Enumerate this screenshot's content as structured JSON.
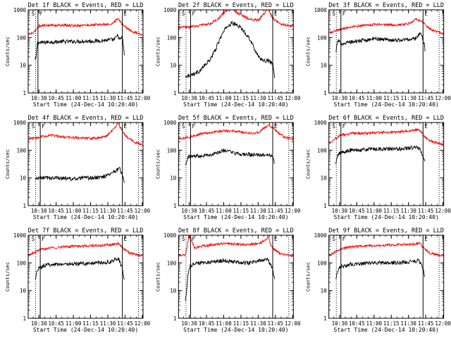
{
  "figure": {
    "x_tick_labels": [
      "10:30",
      "10:45",
      "11:00",
      "11:15",
      "11:30",
      "11:45",
      "12:00"
    ],
    "y_tick_labels": [
      "1",
      "10",
      "100",
      "1000"
    ],
    "ylabel": "Counts/sec",
    "xlabel": "Start Time (24-Dec-14 10:20:40)",
    "colors": {
      "events": "#000000",
      "lld": "#ff0000",
      "axes": "#000000"
    }
  },
  "chart_data": [
    {
      "type": "line",
      "title": "Det 1f BLACK = Events, RED = LLD",
      "xlabel": "Start Time (24-Dec-14 10:20:40)",
      "ylabel": "Counts/sec",
      "x_unit": "minutes since 10:20:40",
      "xlim": [
        0,
        100
      ],
      "ylim": [
        1,
        1000
      ],
      "yscale": "log",
      "markers": {
        "S": 6.5,
        "F": 8.5,
        "E": 82,
        "dotted": [
          96
        ]
      },
      "series": [
        {
          "name": "Events",
          "color": "#000000",
          "x": [
            6,
            7,
            8,
            10,
            20,
            40,
            60,
            75,
            78,
            80,
            82,
            83,
            84
          ],
          "y": [
            15,
            20,
            70,
            65,
            70,
            72,
            75,
            85,
            120,
            80,
            110,
            40,
            20
          ]
        },
        {
          "name": "LLD",
          "color": "#ff0000",
          "x": [
            0,
            5,
            8,
            10,
            20,
            40,
            60,
            72,
            76,
            78,
            80,
            82,
            86,
            90,
            96,
            100
          ],
          "y": [
            130,
            150,
            230,
            270,
            280,
            270,
            290,
            300,
            400,
            500,
            380,
            300,
            220,
            170,
            140,
            130
          ]
        }
      ]
    },
    {
      "type": "line",
      "title": "Det 2f BLACK = Events, RED = LLD",
      "xlabel": "Start Time (24-Dec-14 10:20:40)",
      "ylabel": "Counts/sec",
      "x_unit": "minutes since 10:20:40",
      "xlim": [
        0,
        100
      ],
      "ylim": [
        1,
        1000
      ],
      "yscale": "log",
      "markers": {
        "S": 6.5,
        "F": 10.5,
        "E": 82,
        "dotted": [
          96
        ]
      },
      "series": [
        {
          "name": "Events",
          "color": "#000000",
          "x": [
            6,
            10,
            14,
            18,
            22,
            27,
            32,
            37,
            42,
            47,
            52,
            57,
            62,
            66,
            70,
            74,
            78,
            82,
            84
          ],
          "y": [
            4,
            4.5,
            5,
            6,
            9,
            15,
            35,
            110,
            250,
            330,
            270,
            170,
            90,
            40,
            20,
            14,
            15,
            11,
            3
          ]
        },
        {
          "name": "LLD",
          "color": "#ff0000",
          "x": [
            0,
            10,
            20,
            28,
            34,
            38,
            42,
            46,
            50,
            55,
            60,
            65,
            70,
            74,
            78,
            82,
            90,
            100
          ],
          "y": [
            230,
            240,
            280,
            320,
            450,
            650,
            950,
            1200,
            850,
            650,
            500,
            430,
            430,
            700,
            1100,
            500,
            300,
            250
          ]
        }
      ]
    },
    {
      "type": "line",
      "title": "Det 3f BLACK = Events, RED = LLD",
      "xlabel": "Start Time (24-Dec-14 10:20:40)",
      "ylabel": "Counts/sec",
      "x_unit": "minutes since 10:20:40",
      "xlim": [
        0,
        100
      ],
      "ylim": [
        1,
        1000
      ],
      "yscale": "log",
      "markers": {
        "S": 6.5,
        "F": 10.5,
        "E": 82,
        "dotted": [
          96
        ]
      },
      "series": [
        {
          "name": "Events",
          "color": "#000000",
          "x": [
            6,
            8,
            10,
            20,
            40,
            60,
            75,
            80,
            83,
            84
          ],
          "y": [
            30,
            80,
            60,
            70,
            90,
            80,
            90,
            150,
            60,
            25
          ]
        },
        {
          "name": "LLD",
          "color": "#ff0000",
          "x": [
            0,
            10,
            20,
            40,
            60,
            70,
            76,
            80,
            82,
            88,
            100
          ],
          "y": [
            150,
            200,
            250,
            300,
            280,
            320,
            450,
            400,
            350,
            200,
            140
          ]
        }
      ]
    },
    {
      "type": "line",
      "title": "Det 4f BLACK = Events, RED = LLD",
      "xlabel": "Start Time (24-Dec-14 10:20:40)",
      "ylabel": "Counts/sec",
      "x_unit": "minutes since 10:20:40",
      "xlim": [
        0,
        100
      ],
      "ylim": [
        1,
        1000
      ],
      "yscale": "log",
      "markers": {
        "S": 6.5,
        "F": 10.5,
        "E": 82,
        "dotted": [
          96
        ]
      },
      "series": [
        {
          "name": "Events",
          "color": "#000000",
          "x": [
            6,
            10,
            20,
            30,
            40,
            50,
            60,
            68,
            72,
            76,
            80,
            82,
            84
          ],
          "y": [
            9,
            10,
            10,
            10,
            9,
            10,
            10,
            12,
            15,
            18,
            22,
            12,
            6
          ]
        },
        {
          "name": "LLD",
          "color": "#ff0000",
          "x": [
            0,
            10,
            20,
            30,
            45,
            60,
            68,
            72,
            76,
            78,
            80,
            82,
            86,
            92,
            100
          ],
          "y": [
            250,
            300,
            350,
            300,
            280,
            270,
            320,
            450,
            700,
            1000,
            700,
            500,
            300,
            200,
            150
          ]
        }
      ]
    },
    {
      "type": "line",
      "title": "Det 5f BLACK = Events, RED = LLD",
      "xlabel": "Start Time (24-Dec-14 10:20:40)",
      "ylabel": "Counts/sec",
      "x_unit": "minutes since 10:20:40",
      "xlim": [
        0,
        100
      ],
      "ylim": [
        1,
        1000
      ],
      "yscale": "log",
      "markers": {
        "S": 6.5,
        "F": 10.5,
        "E": 82,
        "dotted": [
          96
        ]
      },
      "series": [
        {
          "name": "Events",
          "color": "#000000",
          "x": [
            6,
            8,
            10,
            20,
            30,
            40,
            50,
            60,
            70,
            78,
            82,
            84
          ],
          "y": [
            30,
            55,
            60,
            65,
            70,
            100,
            75,
            70,
            65,
            70,
            60,
            30
          ]
        },
        {
          "name": "LLD",
          "color": "#ff0000",
          "x": [
            0,
            10,
            20,
            30,
            40,
            50,
            60,
            66,
            70,
            74,
            78,
            82,
            86,
            92,
            100
          ],
          "y": [
            250,
            300,
            400,
            450,
            500,
            480,
            420,
            400,
            450,
            600,
            800,
            650,
            450,
            300,
            250
          ]
        }
      ]
    },
    {
      "type": "line",
      "title": "Det 6f BLACK = Events, RED = LLD",
      "xlabel": "Start Time (24-Dec-14 10:20:40)",
      "ylabel": "Counts/sec",
      "x_unit": "minutes since 10:20:40",
      "xlim": [
        0,
        100
      ],
      "ylim": [
        1,
        1000
      ],
      "yscale": "log",
      "markers": {
        "S": 6.5,
        "F": 10.5,
        "E": 82,
        "dotted": [
          96
        ]
      },
      "series": [
        {
          "name": "Events",
          "color": "#000000",
          "x": [
            6,
            8,
            10,
            20,
            40,
            60,
            70,
            76,
            80,
            82,
            84
          ],
          "y": [
            30,
            70,
            80,
            100,
            110,
            110,
            120,
            130,
            100,
            60,
            35
          ]
        },
        {
          "name": "LLD",
          "color": "#ff0000",
          "x": [
            0,
            10,
            20,
            40,
            60,
            70,
            76,
            80,
            82,
            88,
            100
          ],
          "y": [
            180,
            350,
            400,
            420,
            450,
            500,
            550,
            500,
            350,
            220,
            160
          ]
        }
      ]
    },
    {
      "type": "line",
      "title": "Det 7f BLACK = Events, RED = LLD",
      "xlabel": "Start Time (24-Dec-14 10:20:40)",
      "ylabel": "Counts/sec",
      "x_unit": "minutes since 10:20:40",
      "xlim": [
        0,
        100
      ],
      "ylim": [
        1,
        1000
      ],
      "yscale": "log",
      "markers": {
        "S": 6.5,
        "F": 10.5,
        "E": 82,
        "dotted": [
          96
        ]
      },
      "series": [
        {
          "name": "Events",
          "color": "#000000",
          "x": [
            6,
            8,
            10,
            20,
            40,
            60,
            72,
            78,
            80,
            82,
            84
          ],
          "y": [
            25,
            55,
            70,
            90,
            90,
            100,
            110,
            150,
            100,
            60,
            20
          ]
        },
        {
          "name": "LLD",
          "color": "#ff0000",
          "x": [
            0,
            10,
            20,
            40,
            60,
            72,
            78,
            80,
            82,
            88,
            100
          ],
          "y": [
            180,
            300,
            350,
            400,
            420,
            450,
            500,
            450,
            350,
            230,
            180
          ]
        }
      ]
    },
    {
      "type": "line",
      "title": "Det 8f BLACK = Events, RED = LLD",
      "xlabel": "Start Time (24-Dec-14 10:20:40)",
      "ylabel": "Counts/sec",
      "x_unit": "minutes since 10:20:40",
      "xlim": [
        0,
        100
      ],
      "ylim": [
        1,
        1000
      ],
      "yscale": "log",
      "markers": {
        "S": 6.5,
        "F": 10.5,
        "E": 82,
        "dotted": [
          96
        ]
      },
      "series": [
        {
          "name": "Events",
          "color": "#000000",
          "x": [
            6,
            8,
            10,
            14,
            20,
            30,
            40,
            50,
            60,
            70,
            78,
            82,
            84
          ],
          "y": [
            4,
            30,
            80,
            90,
            100,
            110,
            120,
            110,
            100,
            120,
            130,
            60,
            20
          ]
        },
        {
          "name": "LLD",
          "color": "#ff0000",
          "x": [
            0,
            6,
            8,
            9,
            10,
            14,
            20,
            30,
            40,
            50,
            60,
            70,
            76,
            78,
            80,
            82,
            88,
            100
          ],
          "y": [
            180,
            200,
            500,
            1000,
            900,
            350,
            400,
            450,
            500,
            480,
            450,
            500,
            700,
            900,
            500,
            350,
            220,
            180
          ]
        }
      ]
    },
    {
      "type": "line",
      "title": "Det 9f BLACK = Events, RED = LLD",
      "xlabel": "Start Time (24-Dec-14 10:20:40)",
      "ylabel": "Counts/sec",
      "x_unit": "minutes since 10:20:40",
      "xlim": [
        0,
        100
      ],
      "ylim": [
        1,
        1000
      ],
      "yscale": "log",
      "markers": {
        "S": 6.5,
        "F": 10.5,
        "E": 82,
        "dotted": [
          96
        ]
      },
      "series": [
        {
          "name": "Events",
          "color": "#000000",
          "x": [
            6,
            8,
            10,
            20,
            40,
            60,
            70,
            78,
            80,
            82,
            84
          ],
          "y": [
            25,
            60,
            70,
            90,
            100,
            100,
            110,
            120,
            100,
            60,
            25
          ]
        },
        {
          "name": "LLD",
          "color": "#ff0000",
          "x": [
            0,
            10,
            20,
            40,
            60,
            70,
            78,
            80,
            82,
            88,
            100
          ],
          "y": [
            180,
            320,
            380,
            420,
            450,
            450,
            500,
            480,
            350,
            220,
            180
          ]
        }
      ]
    }
  ]
}
